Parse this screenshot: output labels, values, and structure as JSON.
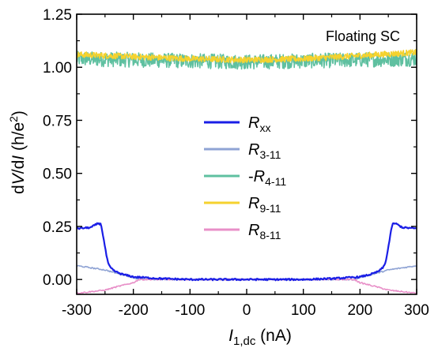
{
  "chart_data": {
    "type": "line",
    "annotation": "Floating SC",
    "xlabel": {
      "sym": "I",
      "sub": "1,dc",
      "unit": " (nA)"
    },
    "ylabel": {
      "p1": "d",
      "v": "V",
      "p2": "/d",
      "i": "I",
      "p3": " (h/e",
      "sup": "2",
      "p4": ")"
    },
    "xlim": [
      -300,
      300
    ],
    "ylim": [
      -0.07,
      1.25
    ],
    "xticks": [
      -300,
      -200,
      -100,
      0,
      100,
      200,
      300
    ],
    "xtick_labels": [
      "-300",
      "-200",
      "-100",
      "0",
      "100",
      "200",
      "300"
    ],
    "yticks": [
      0.0,
      0.25,
      0.5,
      0.75,
      1.0,
      1.25
    ],
    "ytick_labels": [
      "0.00",
      "0.25",
      "0.50",
      "0.75",
      "1.00",
      "1.25"
    ],
    "grid": false,
    "legend_position": "center",
    "series": [
      {
        "name": "R_xx",
        "legend": {
          "prefix": "",
          "sym": "R",
          "sub": "xx"
        },
        "color": "#1a1ee6",
        "noise": 0.004,
        "x": [
          -300,
          -275,
          -262,
          -257,
          -253,
          -248,
          -244,
          -240,
          -236,
          -230,
          -220,
          -200,
          -150,
          -100,
          -50,
          0,
          50,
          100,
          150,
          200,
          220,
          230,
          236,
          240,
          244,
          248,
          253,
          257,
          262,
          275,
          300
        ],
        "y": [
          0.24,
          0.245,
          0.265,
          0.26,
          0.2,
          0.12,
          0.07,
          0.055,
          0.045,
          0.035,
          0.025,
          0.012,
          0.004,
          0.0,
          0.0,
          0.0,
          0.0,
          0.0,
          0.004,
          0.012,
          0.025,
          0.035,
          0.045,
          0.055,
          0.07,
          0.12,
          0.2,
          0.26,
          0.265,
          0.245,
          0.24
        ]
      },
      {
        "name": "R_3-11",
        "legend": {
          "prefix": "",
          "sym": "R",
          "sub": "3-11"
        },
        "color": "#8fa3d4",
        "noise": 0.003,
        "x": [
          -300,
          -250,
          -230,
          -200,
          -190,
          -150,
          0,
          150,
          190,
          200,
          230,
          250,
          300
        ],
        "y": [
          0.065,
          0.045,
          0.03,
          0.01,
          0.0,
          0.0,
          0.0,
          0.0,
          0.0,
          0.01,
          0.03,
          0.045,
          0.065
        ]
      },
      {
        "name": "-R_4-11",
        "legend": {
          "prefix": "-",
          "sym": "R",
          "sub": "4-11"
        },
        "color": "#5fc0a0",
        "noise": 0.035,
        "x": [
          -300,
          -200,
          -100,
          0,
          100,
          200,
          300
        ],
        "y": [
          1.04,
          1.035,
          1.03,
          1.025,
          1.03,
          1.035,
          1.04
        ]
      },
      {
        "name": "R_9-11",
        "legend": {
          "prefix": "",
          "sym": "R",
          "sub": "9-11"
        },
        "color": "#f5d22e",
        "noise": 0.014,
        "x": [
          -300,
          -200,
          -100,
          0,
          100,
          200,
          300
        ],
        "y": [
          1.06,
          1.05,
          1.04,
          1.035,
          1.04,
          1.055,
          1.07
        ]
      },
      {
        "name": "R_8-11",
        "legend": {
          "prefix": "",
          "sym": "R",
          "sub": "8-11"
        },
        "color": "#e88fc8",
        "noise": 0.003,
        "x": [
          -300,
          -250,
          -230,
          -200,
          -190,
          -150,
          0,
          150,
          190,
          200,
          230,
          250,
          300
        ],
        "y": [
          -0.065,
          -0.05,
          -0.035,
          -0.015,
          0.0,
          0.0,
          0.0,
          0.0,
          0.0,
          -0.015,
          -0.035,
          -0.05,
          -0.065
        ]
      }
    ]
  }
}
